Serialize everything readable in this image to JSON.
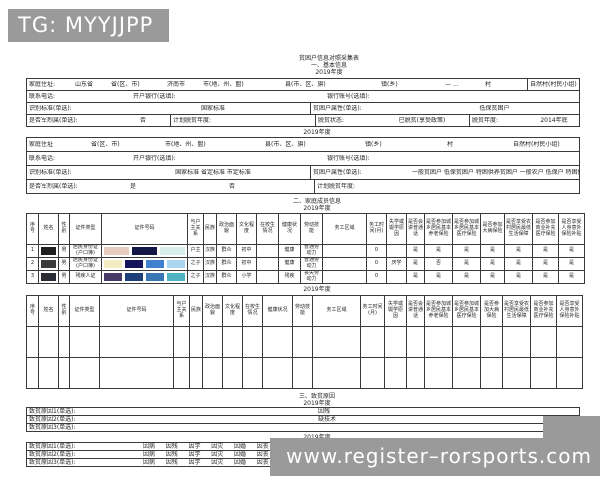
{
  "watermarks": {
    "top": "TG: MYYJJPP",
    "bottom": "www.register–rorsports.com"
  },
  "title": {
    "line1": "贫困户信息对照采集表",
    "line2": "一、基本信息",
    "year": "2019年度"
  },
  "block1": {
    "addr_label": "家庭住址:",
    "province": "山东省",
    "province_suffix": "省(区、市)",
    "city": "济南市",
    "city_suffix": "市(地、州、盟)",
    "county_suffix": "县(市、区、旗)",
    "town_suffix": "镇(乡)",
    "village_value": "— …",
    "village_suffix": "村",
    "hamlet_label": "自然村(村民小组)",
    "phone_label": "联系电话:",
    "bank_label": "开户银行(选填):",
    "account_label": "银行账号(选填):",
    "standard_label": "识别标准(单选):",
    "standard_value": "国家标准",
    "attr_label": "贫困户属性(单选):",
    "attr_value": "低保贫困户",
    "military_label": "是否军烈属(单选):",
    "military_value": "否",
    "plan_year_label": "计划脱贫年度:",
    "status_label": "脱贫状态:",
    "status_value": "已脱贫(享受政策)",
    "out_year_label": "脱贫年度:",
    "out_year_value": "2014年底"
  },
  "year2": "2019年度",
  "block2": {
    "addr_label": "家庭住址",
    "province_suffix": "省(区、市)",
    "city_suffix": "市(地、州、盟)",
    "county_suffix": "县(市、区、旗)",
    "town_suffix": "镇(乡)",
    "village_suffix": "村",
    "hamlet_label": "自然村(村民小组)",
    "phone_label": "联系电话:",
    "bank_label": "开户银行(选填):",
    "account_label": "银行账号(选填):",
    "standard_label": "识别标准(单选):",
    "standard_options": "国家标准  省定标准  市定标准",
    "attr_label": "贫困户属性(单选):",
    "attr_options": "一般贫困户 低保贫困户 特困供养贫困户 一般农户 低保户 特困供养户",
    "military_label": "是否军烈属(单选):",
    "military_yes": "是",
    "military_no": "否",
    "plan_year_label": "计划脱贫年度:"
  },
  "section2": {
    "title": "二、家庭成员信息",
    "year": "2019年度",
    "year_b": "2019年度"
  },
  "member_table1": {
    "headers": [
      "序号",
      "姓名",
      "性别",
      "证件类型",
      "证件号码",
      "与户主关系",
      "民族",
      "政治面貌",
      "文化程度",
      "在校生情况",
      "健康状况",
      "劳动技能",
      "务工区域",
      "务工时间(月)",
      "失学或辍学原因",
      "是否会讲普通话",
      "是否参加城乡居民基本养老保险",
      "是否参加城乡居民基本医疗保险",
      "是否参加大病保险",
      "是否享受农村居民最低生活保障",
      "是否参加商业补充医疗保险",
      "是否享受人身意外保险补贴"
    ],
    "rows": [
      [
        "1",
        {
          "r": [
            "#1f1f1f"
          ]
        },
        "男",
        "居民身份证(户口簿)",
        {
          "r": [
            "#e7cdbf",
            "#141847",
            "#d7efe8"
          ]
        },
        "户主",
        "汉族",
        "群众",
        "初中",
        "",
        "健康",
        "普通劳动力",
        "",
        "0",
        "",
        "是",
        "是",
        "是",
        "是",
        "是",
        "是",
        "是"
      ],
      [
        "2",
        {
          "r": [
            "#3c3c3c"
          ]
        },
        "男",
        "居民身份证(户口簿)",
        {
          "r": [
            "#f3ecc1",
            "#14145c",
            "#3f80cf",
            "#a9d5f1"
          ]
        },
        "之子",
        "汉族",
        "群众",
        "初中",
        "",
        "健康",
        "普通劳动力",
        "",
        "0",
        "厌学",
        "是",
        "否",
        "是",
        "是",
        "是",
        "是",
        "是"
      ],
      [
        "3",
        {
          "r": [
            "#2b2b36"
          ]
        },
        "男",
        "残疾人证",
        {
          "r": [
            "#473a67",
            "#1d3f79",
            "#3b76b4",
            "#50b3c3"
          ]
        },
        "之子",
        "汉族",
        "群众",
        "小学",
        "",
        "残疾",
        "丧失劳动力",
        "",
        "0",
        "",
        "是",
        "是",
        "是",
        "是",
        "是",
        "是",
        "是"
      ]
    ]
  },
  "member_table2": {
    "headers": [
      "序号",
      "姓名",
      "性别",
      "证件类型",
      "证件号码",
      "与户主关系",
      "民族",
      "政治面貌",
      "文化程度",
      "在校生情况",
      "健康状况",
      "劳动技能",
      "务工区域",
      "务工时间(月)",
      "失学或辍学原因",
      "是否会讲普通话",
      "是否参加城乡居民基本养老保险",
      "是否参加城乡居民基本医疗保险",
      "是否参加大病保险",
      "是否享受农村居民最低生活保障",
      "是否参加商业补充医疗保险",
      "是否享受人身意外保险补贴"
    ],
    "rows": [
      [],
      []
    ]
  },
  "section3": {
    "title": "三、致贫原因",
    "year": "2019年度",
    "year_b": "2019年度"
  },
  "causes_filled": {
    "r1_label": "致贫原因1(单选):",
    "r1_value": "因残",
    "r2_label": "致贫原因2(单选):",
    "r2_value": "缺技术",
    "r3_label": "致贫原因3(单选):",
    "r3_value": ""
  },
  "causes_options": {
    "labels": [
      "致贫原因1(单选):",
      "致贫原因2(单选):",
      "致贫原因3(单选):"
    ],
    "options": [
      "因病",
      "因残",
      "因学",
      "因灾",
      "因婚",
      "因丧",
      "缺土地",
      "缺水",
      "缺技术",
      "缺劳动力",
      "缺资金",
      "交通条件落后",
      "自身发展动力不足"
    ]
  }
}
